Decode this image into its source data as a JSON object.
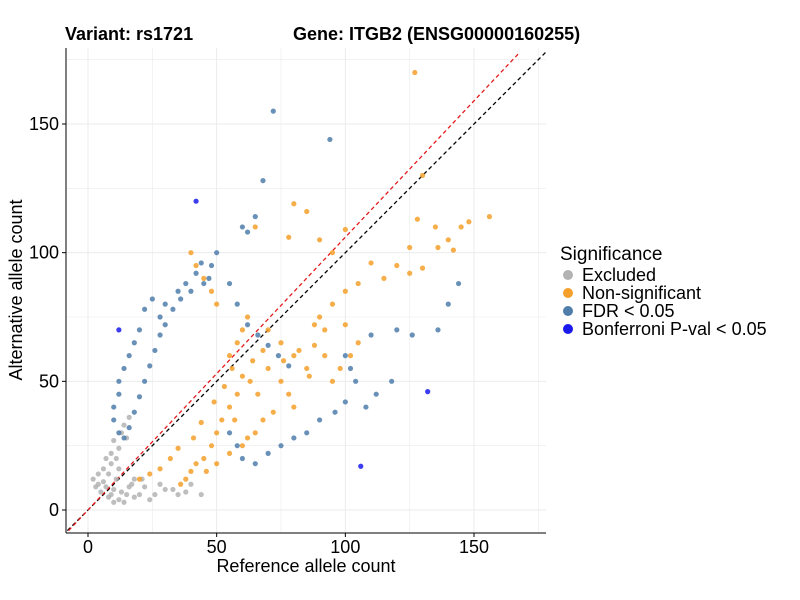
{
  "header": {
    "variant": "Variant: rs1721",
    "gene": "Gene: ITGB2 (ENSG00000160255)"
  },
  "legend": {
    "title": "Significance",
    "items": [
      {
        "label": "Excluded",
        "color": "#b3b3b3"
      },
      {
        "label": "Non-significant",
        "color": "#f5a02a"
      },
      {
        "label": "FDR < 0.05",
        "color": "#4f7eab"
      },
      {
        "label": "Bonferroni P-val < 0.05",
        "color": "#1a1aee"
      }
    ]
  },
  "chart_data": {
    "type": "scatter",
    "xlabel": "Reference allele count",
    "ylabel": "Alternative allele count",
    "xlim": [
      -8,
      178
    ],
    "ylim": [
      -8,
      178
    ],
    "xticks": [
      0,
      50,
      100,
      150
    ],
    "yticks": [
      0,
      50,
      100,
      150
    ],
    "reference_lines": [
      {
        "name": "identity",
        "slope": 1.0,
        "intercept": 0,
        "color": "#000000",
        "dash": true
      },
      {
        "name": "fitted",
        "slope": 1.06,
        "intercept": 0,
        "color": "#e31a1c",
        "dash": true
      }
    ],
    "series": [
      {
        "name": "Excluded",
        "color": "#b3b3b3",
        "points": [
          [
            2,
            12
          ],
          [
            3,
            9
          ],
          [
            4,
            10
          ],
          [
            5,
            7
          ],
          [
            6,
            11
          ],
          [
            7,
            9
          ],
          [
            8,
            5
          ],
          [
            9,
            6
          ],
          [
            10,
            3
          ],
          [
            10,
            8
          ],
          [
            12,
            4
          ],
          [
            13,
            7
          ],
          [
            14,
            3
          ],
          [
            15,
            6
          ],
          [
            8,
            14
          ],
          [
            6,
            16
          ],
          [
            9,
            18
          ],
          [
            11,
            20
          ],
          [
            12,
            24
          ],
          [
            10,
            27
          ],
          [
            13,
            30
          ],
          [
            14,
            33
          ],
          [
            16,
            36
          ],
          [
            15,
            28
          ],
          [
            12,
            16
          ],
          [
            18,
            5
          ],
          [
            20,
            6
          ],
          [
            22,
            9
          ],
          [
            24,
            4
          ],
          [
            26,
            6
          ],
          [
            30,
            8
          ],
          [
            35,
            6
          ],
          [
            40,
            10
          ],
          [
            44,
            6
          ],
          [
            4,
            14
          ],
          [
            7,
            20
          ],
          [
            11,
            12
          ],
          [
            16,
            9
          ],
          [
            18,
            12
          ],
          [
            9,
            22
          ],
          [
            17,
            10
          ],
          [
            21,
            12
          ],
          [
            28,
            10
          ],
          [
            33,
            8
          ],
          [
            38,
            7
          ]
        ]
      },
      {
        "name": "Non-significant",
        "color": "#f5a02a",
        "points": [
          [
            127,
            170
          ],
          [
            130,
            130
          ],
          [
            85,
            116
          ],
          [
            80,
            119
          ],
          [
            65,
            110
          ],
          [
            78,
            106
          ],
          [
            90,
            105
          ],
          [
            95,
            100
          ],
          [
            100,
            109
          ],
          [
            110,
            96
          ],
          [
            120,
            95
          ],
          [
            125,
            102
          ],
          [
            128,
            113
          ],
          [
            135,
            110
          ],
          [
            140,
            105
          ],
          [
            145,
            110
          ],
          [
            148,
            112
          ],
          [
            156,
            114
          ],
          [
            142,
            101
          ],
          [
            136,
            102
          ],
          [
            130,
            94
          ],
          [
            125,
            92
          ],
          [
            115,
            90
          ],
          [
            105,
            88
          ],
          [
            100,
            85
          ],
          [
            95,
            80
          ],
          [
            90,
            75
          ],
          [
            88,
            72
          ],
          [
            92,
            70
          ],
          [
            100,
            72
          ],
          [
            105,
            65
          ],
          [
            102,
            60
          ],
          [
            98,
            55
          ],
          [
            95,
            50
          ],
          [
            85,
            55
          ],
          [
            80,
            60
          ],
          [
            75,
            65
          ],
          [
            70,
            70
          ],
          [
            68,
            62
          ],
          [
            64,
            58
          ],
          [
            60,
            52
          ],
          [
            58,
            45
          ],
          [
            55,
            40
          ],
          [
            52,
            35
          ],
          [
            50,
            30
          ],
          [
            48,
            25
          ],
          [
            45,
            20
          ],
          [
            42,
            18
          ],
          [
            40,
            15
          ],
          [
            38,
            12
          ],
          [
            36,
            10
          ],
          [
            55,
            60
          ],
          [
            58,
            65
          ],
          [
            60,
            70
          ],
          [
            62,
            75
          ],
          [
            50,
            80
          ],
          [
            48,
            85
          ],
          [
            45,
            90
          ],
          [
            42,
            95
          ],
          [
            40,
            100
          ],
          [
            70,
            55
          ],
          [
            75,
            50
          ],
          [
            78,
            45
          ],
          [
            80,
            40
          ],
          [
            72,
            38
          ],
          [
            68,
            35
          ],
          [
            65,
            30
          ],
          [
            62,
            28
          ],
          [
            60,
            25
          ],
          [
            55,
            22
          ],
          [
            50,
            18
          ],
          [
            46,
            15
          ],
          [
            82,
            62
          ],
          [
            88,
            64
          ],
          [
            92,
            60
          ],
          [
            86,
            52
          ],
          [
            76,
            58
          ],
          [
            66,
            45
          ],
          [
            63,
            50
          ],
          [
            56,
            55
          ],
          [
            53,
            48
          ],
          [
            49,
            42
          ],
          [
            57,
            35
          ],
          [
            44,
            34
          ],
          [
            41,
            28
          ],
          [
            35,
            24
          ],
          [
            32,
            20
          ],
          [
            28,
            16
          ],
          [
            24,
            14
          ],
          [
            20,
            12
          ]
        ]
      },
      {
        "name": "FDR < 0.05",
        "color": "#4f7eab",
        "points": [
          [
            72,
            155
          ],
          [
            94,
            144
          ],
          [
            68,
            128
          ],
          [
            65,
            114
          ],
          [
            60,
            110
          ],
          [
            62,
            108
          ],
          [
            50,
            100
          ],
          [
            48,
            95
          ],
          [
            47,
            90
          ],
          [
            45,
            88
          ],
          [
            40,
            85
          ],
          [
            35,
            85
          ],
          [
            30,
            80
          ],
          [
            28,
            75
          ],
          [
            25,
            82
          ],
          [
            22,
            78
          ],
          [
            20,
            70
          ],
          [
            18,
            65
          ],
          [
            16,
            60
          ],
          [
            14,
            55
          ],
          [
            12,
            50
          ],
          [
            12,
            45
          ],
          [
            10,
            40
          ],
          [
            10,
            35
          ],
          [
            12,
            30
          ],
          [
            14,
            28
          ],
          [
            16,
            32
          ],
          [
            18,
            38
          ],
          [
            20,
            44
          ],
          [
            22,
            50
          ],
          [
            24,
            56
          ],
          [
            26,
            62
          ],
          [
            28,
            68
          ],
          [
            30,
            72
          ],
          [
            33,
            78
          ],
          [
            36,
            82
          ],
          [
            38,
            88
          ],
          [
            42,
            92
          ],
          [
            44,
            96
          ],
          [
            55,
            88
          ],
          [
            58,
            80
          ],
          [
            62,
            72
          ],
          [
            66,
            68
          ],
          [
            70,
            64
          ],
          [
            74,
            60
          ],
          [
            78,
            56
          ],
          [
            100,
            60
          ],
          [
            102,
            55
          ],
          [
            104,
            50
          ],
          [
            110,
            68
          ],
          [
            120,
            70
          ],
          [
            126,
            68
          ],
          [
            136,
            70
          ],
          [
            140,
            80
          ],
          [
            144,
            88
          ],
          [
            118,
            50
          ],
          [
            112,
            45
          ],
          [
            108,
            40
          ],
          [
            100,
            42
          ],
          [
            96,
            38
          ],
          [
            90,
            35
          ],
          [
            85,
            30
          ],
          [
            80,
            28
          ],
          [
            75,
            25
          ],
          [
            70,
            22
          ],
          [
            65,
            18
          ],
          [
            60,
            20
          ],
          [
            58,
            25
          ],
          [
            55,
            30
          ]
        ]
      },
      {
        "name": "Bonferroni P-val < 0.05",
        "color": "#1a1aee",
        "points": [
          [
            42,
            120
          ],
          [
            12,
            70
          ],
          [
            106,
            17
          ],
          [
            132,
            46
          ]
        ]
      }
    ]
  }
}
